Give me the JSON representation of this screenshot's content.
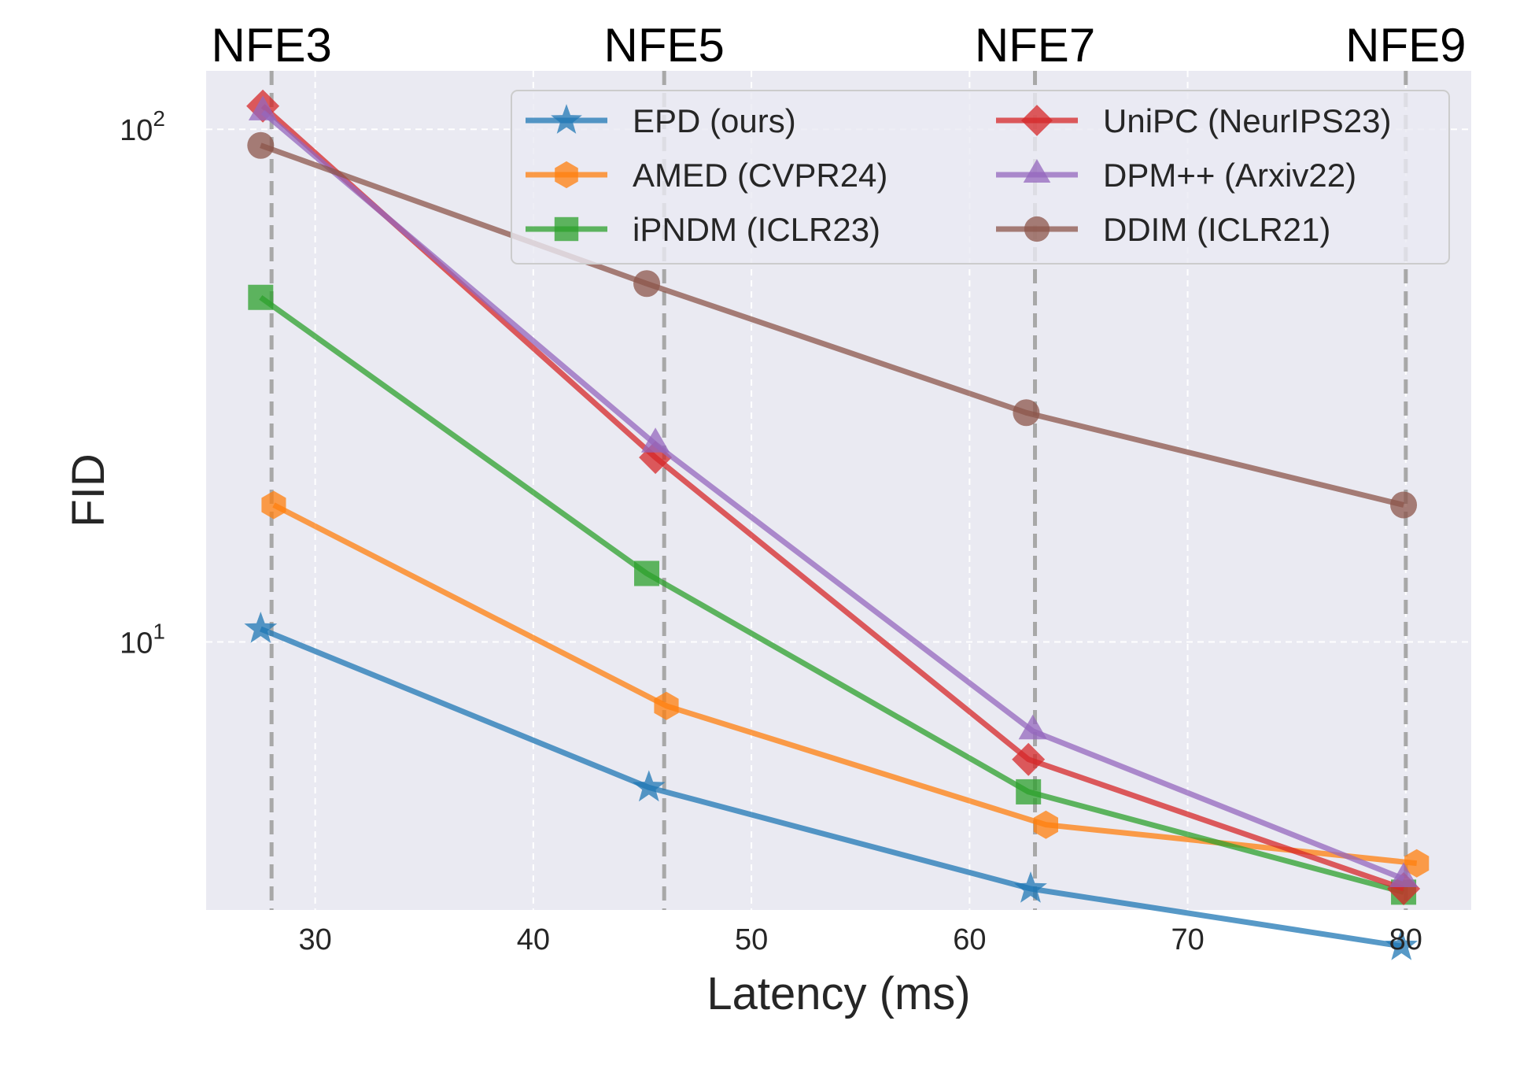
{
  "chart_data": {
    "type": "line",
    "xlabel": "Latency (ms)",
    "ylabel": "FID",
    "yscale": "log",
    "xlim": [
      25,
      83
    ],
    "ylim": [
      3.0,
      130
    ],
    "xticks": [
      {
        "value": 30,
        "label": "30"
      },
      {
        "value": 40,
        "label": "40"
      },
      {
        "value": 50,
        "label": "50"
      },
      {
        "value": 60,
        "label": "60"
      },
      {
        "value": 70,
        "label": "70"
      },
      {
        "value": 80,
        "label": "80"
      }
    ],
    "yticks": [
      {
        "value": 10,
        "base": "10",
        "exp": "1"
      },
      {
        "value": 100,
        "base": "10",
        "exp": "2"
      }
    ],
    "nfe_markers": [
      {
        "x": 28.0,
        "label": "NFE3"
      },
      {
        "x": 46.0,
        "label": "NFE5"
      },
      {
        "x": 63.0,
        "label": "NFE7"
      },
      {
        "x": 80.0,
        "label": "NFE9"
      }
    ],
    "legend_position": "top-right",
    "series": [
      {
        "name": "EPD (ours)",
        "color": "#1f77b4",
        "marker": "star",
        "x": [
          27.5,
          45.3,
          62.8,
          79.8
        ],
        "y": [
          10.6,
          5.2,
          3.3,
          2.55
        ]
      },
      {
        "name": "AMED (CVPR24)",
        "color": "#ff7f0e",
        "marker": "hexagon",
        "x": [
          28.1,
          46.1,
          63.5,
          80.5
        ],
        "y": [
          18.5,
          7.5,
          4.4,
          3.7
        ]
      },
      {
        "name": "iPNDM (ICLR23)",
        "color": "#2ca02c",
        "marker": "square",
        "x": [
          27.5,
          45.2,
          62.7,
          79.9
        ],
        "y": [
          47.0,
          13.6,
          5.1,
          3.25
        ]
      },
      {
        "name": "UniPC (NeurIPS23)",
        "color": "#d62728",
        "marker": "diamond",
        "x": [
          27.6,
          45.6,
          62.7,
          79.9
        ],
        "y": [
          111.0,
          22.9,
          5.9,
          3.3
        ]
      },
      {
        "name": "DPM++ (Arxiv22)",
        "color": "#9467bd",
        "marker": "triangle",
        "x": [
          27.6,
          45.6,
          62.9,
          79.9
        ],
        "y": [
          108.0,
          24.3,
          6.7,
          3.45
        ]
      },
      {
        "name": "DDIM (ICLR21)",
        "color": "#8c564b",
        "marker": "circle",
        "x": [
          27.5,
          45.2,
          62.6,
          79.9
        ],
        "y": [
          93.0,
          50.0,
          28.0,
          18.5
        ]
      }
    ]
  }
}
